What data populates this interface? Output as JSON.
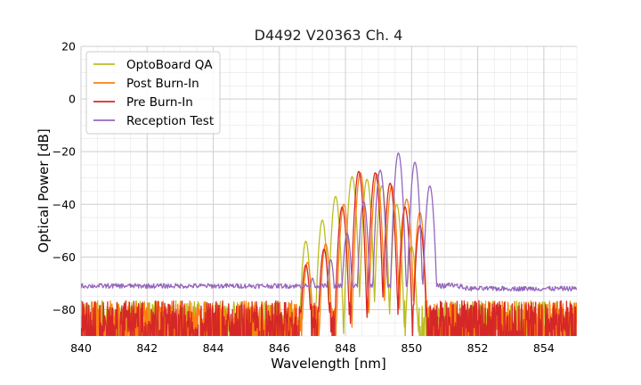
{
  "chart_data": {
    "type": "line",
    "title": "D4492 V20363 Ch. 4",
    "xlabel": "Wavelength [nm]",
    "ylabel": "Optical Power [dB]",
    "xlim": [
      840,
      855
    ],
    "ylim": [
      -90,
      20
    ],
    "xticks": [
      840,
      842,
      844,
      846,
      848,
      850,
      852,
      854
    ],
    "yticks": [
      20,
      0,
      -20,
      -40,
      -60,
      -80
    ],
    "grid": true,
    "minor_grid": true,
    "legend_position": "top-left",
    "series": [
      {
        "name": "OptoBoard QA",
        "color": "#bcbd22",
        "noise_floor": -85,
        "spectrum_start": 846.3,
        "spectrum_end": 850.1,
        "peaks": [
          {
            "x": 846.8,
            "y": -54
          },
          {
            "x": 847.3,
            "y": -46
          },
          {
            "x": 847.7,
            "y": -37
          },
          {
            "x": 848.2,
            "y": -29.5
          },
          {
            "x": 848.65,
            "y": -30.5
          },
          {
            "x": 849.1,
            "y": -33
          },
          {
            "x": 849.55,
            "y": -40
          },
          {
            "x": 850.0,
            "y": -56
          }
        ]
      },
      {
        "name": "Post Burn-In",
        "color": "#ff7f0e",
        "noise_floor": -85,
        "spectrum_start": 846.5,
        "spectrum_end": 850.6,
        "peaks": [
          {
            "x": 846.85,
            "y": -62
          },
          {
            "x": 847.4,
            "y": -55
          },
          {
            "x": 847.95,
            "y": -40
          },
          {
            "x": 848.45,
            "y": -28
          },
          {
            "x": 848.95,
            "y": -28.5
          },
          {
            "x": 849.4,
            "y": -33
          },
          {
            "x": 849.85,
            "y": -38
          },
          {
            "x": 850.25,
            "y": -43
          }
        ]
      },
      {
        "name": "Pre Burn-In",
        "color": "#d62728",
        "noise_floor": -85,
        "spectrum_start": 846.5,
        "spectrum_end": 850.6,
        "peaks": [
          {
            "x": 846.8,
            "y": -63
          },
          {
            "x": 847.35,
            "y": -57
          },
          {
            "x": 847.9,
            "y": -41
          },
          {
            "x": 848.4,
            "y": -27.5
          },
          {
            "x": 848.9,
            "y": -28
          },
          {
            "x": 849.35,
            "y": -32
          },
          {
            "x": 849.8,
            "y": -41
          },
          {
            "x": 850.25,
            "y": -48
          }
        ]
      },
      {
        "name": "Reception Test",
        "color": "#9467bd",
        "noise_floor": -71,
        "spectrum_start": 846.6,
        "spectrum_end": 851.1,
        "peaks": [
          {
            "x": 847.0,
            "y": -68
          },
          {
            "x": 847.55,
            "y": -61
          },
          {
            "x": 848.05,
            "y": -51
          },
          {
            "x": 848.55,
            "y": -39
          },
          {
            "x": 849.05,
            "y": -27
          },
          {
            "x": 849.6,
            "y": -20.5
          },
          {
            "x": 850.1,
            "y": -24
          },
          {
            "x": 850.55,
            "y": -33
          }
        ]
      }
    ]
  }
}
